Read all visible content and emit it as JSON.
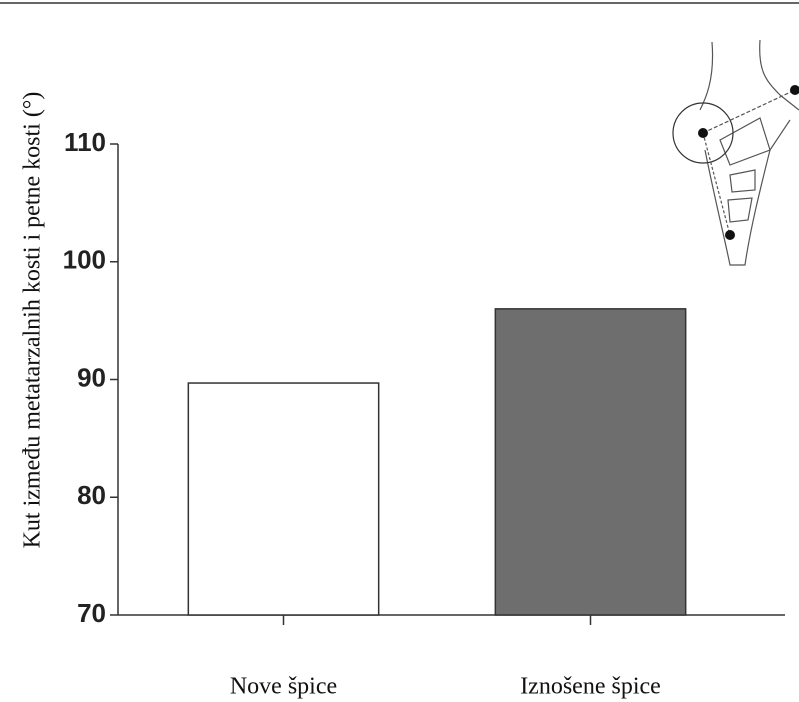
{
  "chart_data": {
    "type": "bar",
    "y_label": "Kut između metatarzalnih kosti i petne kosti (°)",
    "categories": [
      "Nove špice",
      "Iznošene špice"
    ],
    "values": [
      89.7,
      96.0
    ],
    "colors": [
      "#ffffff",
      "#6e6e6e"
    ],
    "ylim": [
      70,
      110
    ],
    "yticks": [
      70,
      80,
      90,
      100,
      110
    ]
  }
}
